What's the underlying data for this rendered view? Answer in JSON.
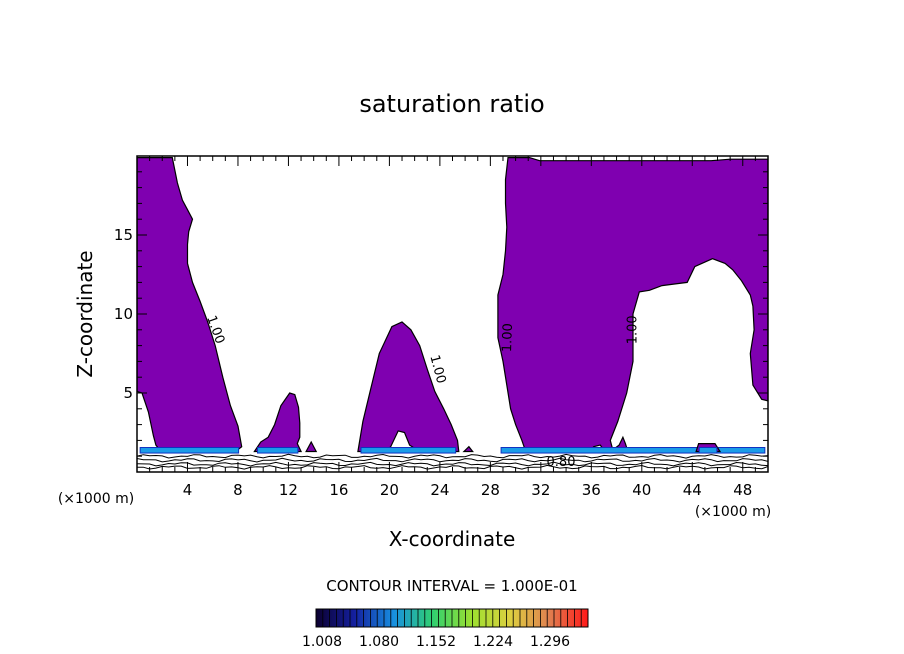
{
  "chart_data": {
    "type": "heatmap",
    "title": "saturation ratio",
    "xlabel": "X-coordinate",
    "ylabel": "Z-coordinate",
    "x_unit": "(×1000 m)",
    "y_unit": "(×1000 m)",
    "xlim": [
      0,
      50
    ],
    "ylim": [
      0,
      20
    ],
    "x_ticks": [
      4,
      8,
      12,
      16,
      20,
      24,
      28,
      32,
      36,
      40,
      44,
      48
    ],
    "y_ticks": [
      5,
      10,
      15
    ],
    "grid": false,
    "fill_color": "#7f00b0",
    "line_color": "#000000",
    "contour_labels": [
      {
        "text": "1.00",
        "x": 6.2,
        "z": 9.0,
        "angle": 70
      },
      {
        "text": "1.00",
        "x": 23.8,
        "z": 6.5,
        "angle": 75
      },
      {
        "text": "1.00",
        "x": 29.4,
        "z": 8.5,
        "angle": -88
      },
      {
        "text": "1.00",
        "x": 39.3,
        "z": 9.0,
        "angle": -90
      },
      {
        "text": "0.80",
        "x": 33.6,
        "z": 0.6,
        "angle": 0
      }
    ],
    "regions": [
      [
        [
          0,
          19.9
        ],
        [
          2.8,
          19.9
        ],
        [
          3.2,
          18.3
        ],
        [
          3.6,
          17.2
        ],
        [
          4.0,
          16.6
        ],
        [
          4.4,
          16.0
        ],
        [
          4.1,
          15.2
        ],
        [
          4.0,
          14.4
        ],
        [
          4.0,
          13.2
        ],
        [
          4.4,
          12.0
        ],
        [
          5.0,
          10.8
        ],
        [
          5.6,
          9.5
        ],
        [
          6.2,
          8.0
        ],
        [
          6.8,
          6.0
        ],
        [
          7.4,
          4.2
        ],
        [
          8.0,
          2.9
        ],
        [
          8.3,
          1.6
        ],
        [
          7.8,
          1.3
        ],
        [
          1.9,
          1.3
        ],
        [
          1.5,
          1.7
        ],
        [
          1.3,
          2.3
        ],
        [
          0.9,
          3.8
        ],
        [
          0.4,
          5.0
        ],
        [
          0,
          5.1
        ]
      ],
      [
        [
          9.3,
          1.3
        ],
        [
          9.8,
          1.9
        ],
        [
          10.4,
          2.2
        ],
        [
          10.9,
          3.0
        ],
        [
          11.4,
          4.2
        ],
        [
          12.1,
          5.0
        ],
        [
          12.5,
          4.9
        ],
        [
          12.8,
          4.1
        ],
        [
          12.9,
          3.1
        ],
        [
          12.9,
          2.2
        ],
        [
          12.7,
          1.8
        ],
        [
          13.0,
          1.3
        ]
      ],
      [
        [
          13.4,
          1.3
        ],
        [
          13.8,
          1.9
        ],
        [
          14.2,
          1.3
        ]
      ],
      [
        [
          17.5,
          1.3
        ],
        [
          17.9,
          3.2
        ],
        [
          18.5,
          5.2
        ],
        [
          19.2,
          7.5
        ],
        [
          20.2,
          9.2
        ],
        [
          21.0,
          9.5
        ],
        [
          21.7,
          9.0
        ],
        [
          22.4,
          8.0
        ],
        [
          23.0,
          6.5
        ],
        [
          23.6,
          5.1
        ],
        [
          24.3,
          4.0
        ],
        [
          24.9,
          3.0
        ],
        [
          25.4,
          2.0
        ],
        [
          25.5,
          1.3
        ],
        [
          22.4,
          1.3
        ],
        [
          21.6,
          1.7
        ],
        [
          21.2,
          2.5
        ],
        [
          20.7,
          2.6
        ],
        [
          20.1,
          1.6
        ],
        [
          19.7,
          1.3
        ]
      ],
      [
        [
          25.9,
          1.3
        ],
        [
          26.3,
          1.6
        ],
        [
          26.6,
          1.3
        ]
      ],
      [
        [
          29.4,
          19.9
        ],
        [
          31.1,
          19.9
        ],
        [
          31.9,
          19.7
        ],
        [
          40.0,
          19.7
        ],
        [
          45.5,
          19.7
        ],
        [
          47.0,
          19.8
        ],
        [
          50,
          19.8
        ],
        [
          50,
          4.5
        ],
        [
          49.5,
          4.6
        ],
        [
          48.8,
          5.5
        ],
        [
          48.6,
          7.5
        ],
        [
          48.9,
          9.0
        ],
        [
          48.8,
          10.5
        ],
        [
          48.6,
          11.2
        ],
        [
          47.9,
          12.1
        ],
        [
          47.2,
          12.8
        ],
        [
          46.6,
          13.2
        ],
        [
          45.6,
          13.5
        ],
        [
          44.2,
          13.0
        ],
        [
          43.6,
          12.0
        ],
        [
          42.6,
          11.9
        ],
        [
          41.6,
          11.8
        ],
        [
          40.6,
          11.5
        ],
        [
          39.8,
          11.4
        ],
        [
          39.3,
          10.0
        ],
        [
          39.3,
          7.0
        ],
        [
          38.8,
          5.0
        ],
        [
          38.1,
          3.2
        ],
        [
          37.5,
          2.0
        ],
        [
          37.7,
          1.4
        ],
        [
          38.2,
          1.7
        ],
        [
          38.5,
          2.2
        ],
        [
          38.7,
          1.8
        ],
        [
          38.9,
          1.3
        ],
        [
          37.1,
          1.3
        ],
        [
          36.7,
          1.7
        ],
        [
          36.2,
          1.6
        ],
        [
          35.8,
          1.3
        ],
        [
          30.8,
          1.3
        ],
        [
          30.5,
          2.0
        ],
        [
          30.0,
          3.0
        ],
        [
          29.6,
          4.0
        ],
        [
          29.3,
          5.5
        ],
        [
          29.0,
          7.0
        ],
        [
          28.6,
          8.5
        ],
        [
          28.6,
          10.0
        ],
        [
          28.6,
          11.2
        ],
        [
          29.0,
          12.5
        ],
        [
          29.2,
          14.0
        ],
        [
          29.3,
          15.5
        ],
        [
          29.2,
          17.0
        ],
        [
          29.2,
          18.5
        ]
      ],
      [
        [
          44.3,
          1.3
        ],
        [
          44.5,
          1.8
        ],
        [
          45.8,
          1.8
        ],
        [
          46.2,
          1.3
        ]
      ]
    ],
    "colorbar": {
      "tick_labels": [
        "1.008",
        "1.080",
        "1.152",
        "1.224",
        "1.296"
      ],
      "stop_colors": [
        "#0c0030",
        "#1420a0",
        "#1890e0",
        "#30d070",
        "#9ce030",
        "#ddd040",
        "#e08050",
        "#ff1818"
      ],
      "tick_count": 40
    },
    "contour_interval": "CONTOUR INTERVAL = 1.000E-01"
  }
}
